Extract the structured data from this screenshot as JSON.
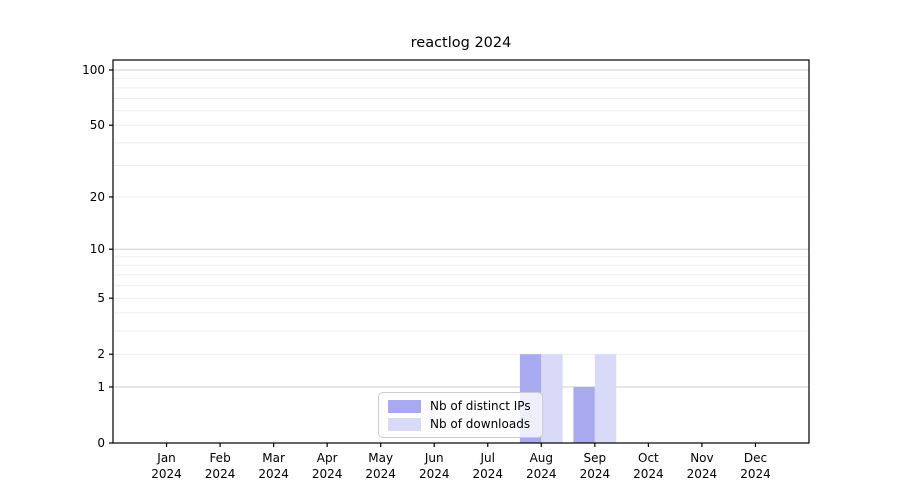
{
  "title": "reactlog 2024",
  "legend": {
    "items": [
      {
        "label": "Nb of distinct IPs",
        "color": "#a9a9f0"
      },
      {
        "label": "Nb of downloads",
        "color": "#d9d9f8"
      }
    ]
  },
  "colors": {
    "background": "#ffffff",
    "axis": "#000000",
    "tick_label": "#000000",
    "gridline_major": "#cccccc",
    "gridline_minor": "#eeeeee",
    "legend_border": "#cccccc",
    "bar_distinct_ips": "#a9a9f0",
    "bar_downloads": "#d9d9f8"
  },
  "chart_data": {
    "type": "bar",
    "title": "reactlog 2024",
    "categories": [
      "Jan 2024",
      "Feb 2024",
      "Mar 2024",
      "Apr 2024",
      "May 2024",
      "Jun 2024",
      "Jul 2024",
      "Aug 2024",
      "Sep 2024",
      "Oct 2024",
      "Nov 2024",
      "Dec 2024"
    ],
    "series": [
      {
        "name": "Nb of distinct IPs",
        "color": "#a9a9f0",
        "values": [
          0,
          0,
          0,
          0,
          0,
          0,
          0,
          2,
          1,
          0,
          0,
          0
        ]
      },
      {
        "name": "Nb of downloads",
        "color": "#d9d9f8",
        "values": [
          0,
          0,
          0,
          0,
          0,
          0,
          0,
          2,
          2,
          0,
          0,
          0
        ]
      }
    ],
    "xlabel": "",
    "ylabel": "",
    "yscale": "log1p",
    "yticks": [
      0,
      1,
      2,
      5,
      10,
      20,
      50,
      100
    ],
    "gridlines": [
      1,
      2,
      3,
      4,
      5,
      6,
      7,
      8,
      9,
      10,
      20,
      30,
      40,
      50,
      60,
      70,
      80,
      90,
      100
    ],
    "gridlines_major": [
      1,
      10,
      100
    ],
    "ylim": [
      0,
      113
    ],
    "grid": "horizontal",
    "legend_position": "inside-bottom-center",
    "bar_group": "paired-per-month"
  }
}
